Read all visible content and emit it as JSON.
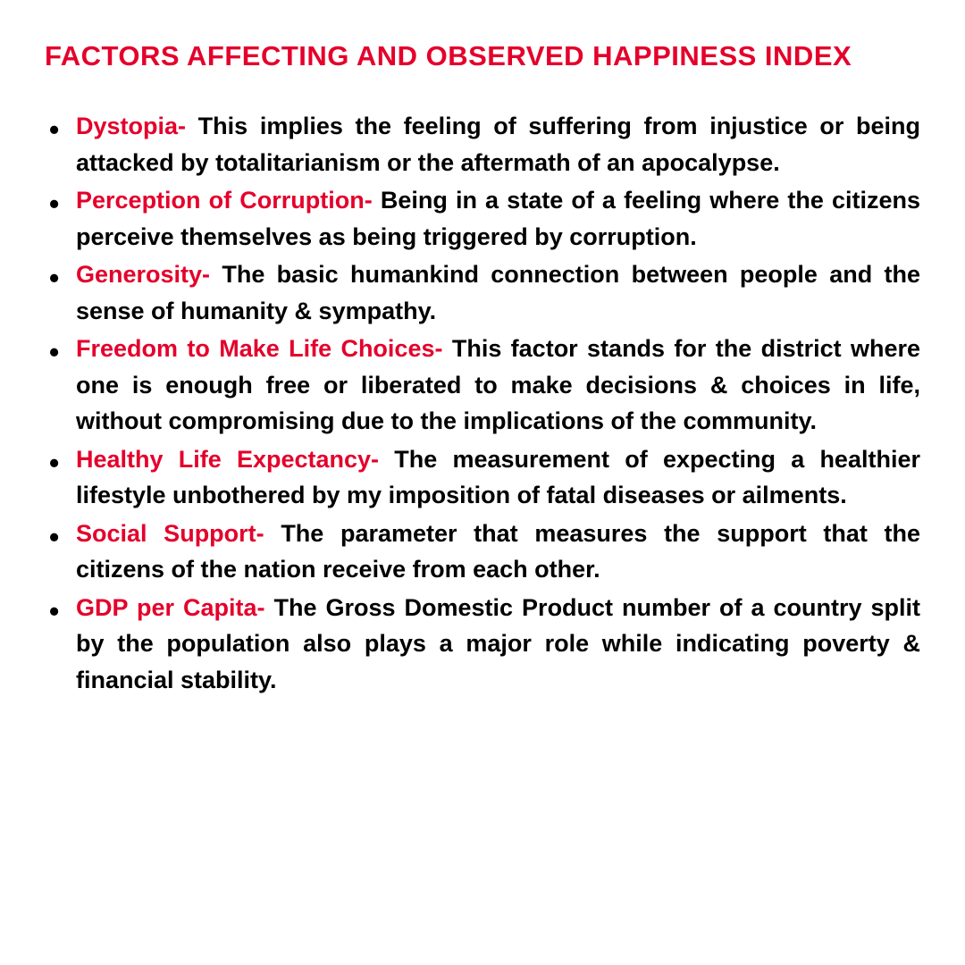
{
  "title": "FACTORS AFFECTING AND OBSERVED HAPPINESS INDEX",
  "colors": {
    "accent": "#e4002b",
    "text": "#000000",
    "background": "#ffffff"
  },
  "typography": {
    "title_fontsize": 31,
    "body_fontsize": 27,
    "font_weight": 700,
    "line_height": 1.5,
    "text_align": "justify"
  },
  "factors": [
    {
      "term": "Dystopia- ",
      "description": "This implies the feeling of suffering from injustice or being attacked by totalitarianism or the aftermath of an apocalypse."
    },
    {
      "term": "Perception of Corruption- ",
      "description": "Being in a state of a feeling where the citizens perceive themselves as being triggered by corruption."
    },
    {
      "term": "Generosity- ",
      "description": "The basic humankind connection between people and the sense of humanity & sympathy."
    },
    {
      "term": "Freedom to Make Life Choices- ",
      "description": "This factor stands for the district where one is enough free or liberated to make decisions & choices in life, without compromising due to the implications of the community."
    },
    {
      "term": "Healthy Life Expectancy- ",
      "description": "The measurement of expecting a healthier lifestyle unbothered by my imposition of fatal diseases or ailments."
    },
    {
      "term": "Social Support- ",
      "description": "The parameter that measures the support that the citizens of the nation receive from each other."
    },
    {
      "term": "GDP per Capita- ",
      "description": "The Gross Domestic Product number of a country split by the population also plays a major role while indicating poverty & financial stability."
    }
  ]
}
